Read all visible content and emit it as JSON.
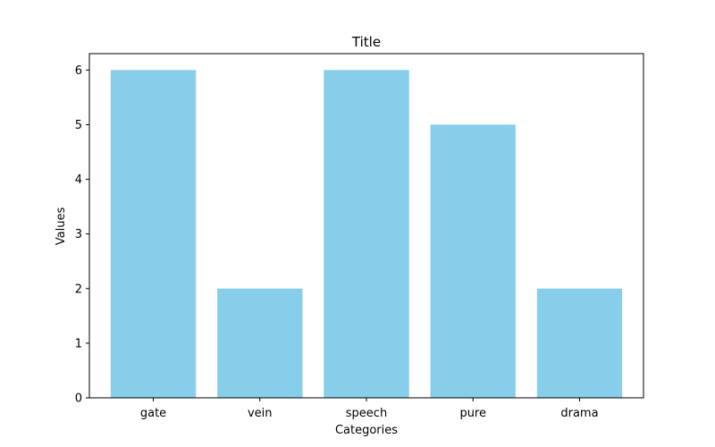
{
  "chart_data": {
    "type": "bar",
    "title": "Title",
    "xlabel": "Categories",
    "ylabel": "Values",
    "categories": [
      "gate",
      "vein",
      "speech",
      "pure",
      "drama"
    ],
    "values": [
      6,
      2,
      6,
      5,
      2
    ],
    "ylim": [
      0,
      6.3
    ],
    "yticks": [
      0,
      1,
      2,
      3,
      4,
      5,
      6
    ],
    "bar_color": "#87CEEB",
    "grid": false,
    "legend": "none"
  }
}
